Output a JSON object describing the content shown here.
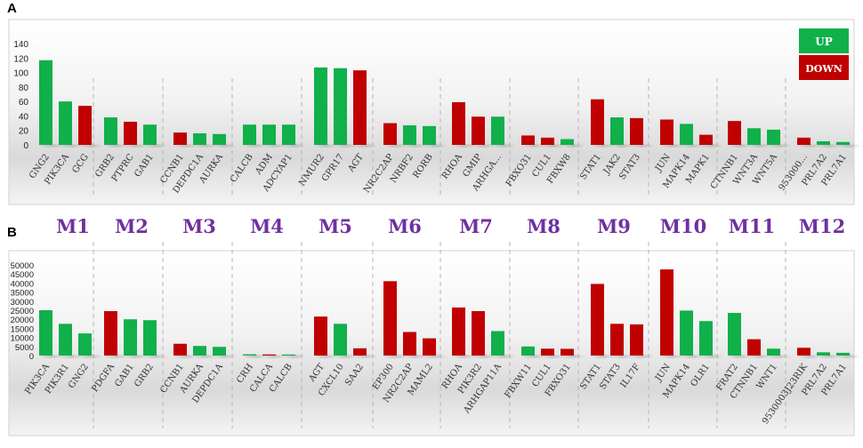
{
  "panels": {
    "a": "A",
    "b": "B"
  },
  "legend": {
    "up": "UP",
    "down": "DOWN",
    "up_color": "#10B04A",
    "down_color": "#C00000"
  },
  "modules": [
    "M1",
    "M2",
    "M3",
    "M4",
    "M5",
    "M6",
    "M7",
    "M8",
    "M9",
    "M10",
    "M11",
    "M12"
  ],
  "module_color": "#7030A0",
  "chart_data": [
    {
      "type": "bar",
      "panel": "A",
      "ylim": [
        0,
        140
      ],
      "yticks": [
        0,
        20,
        40,
        60,
        80,
        100,
        120,
        140
      ],
      "grid": false,
      "legend_position": "top-right",
      "groups": [
        {
          "module": "M1",
          "bars": [
            {
              "label": "GNG2",
              "value": 117,
              "dir": "up"
            },
            {
              "label": "PIK3CA",
              "value": 60,
              "dir": "up"
            },
            {
              "label": "GCG",
              "value": 54,
              "dir": "down"
            }
          ]
        },
        {
          "module": "M2",
          "bars": [
            {
              "label": "GRB2",
              "value": 38,
              "dir": "up"
            },
            {
              "label": "PTPRC",
              "value": 32,
              "dir": "down"
            },
            {
              "label": "GAB1",
              "value": 28,
              "dir": "up"
            }
          ]
        },
        {
          "module": "M3",
          "bars": [
            {
              "label": "CCNB1",
              "value": 17,
              "dir": "down"
            },
            {
              "label": "DEPDC1A",
              "value": 16,
              "dir": "up"
            },
            {
              "label": "AURKA",
              "value": 15,
              "dir": "up"
            }
          ]
        },
        {
          "module": "M4",
          "bars": [
            {
              "label": "CALCB",
              "value": 28,
              "dir": "up"
            },
            {
              "label": "ADM",
              "value": 28,
              "dir": "up"
            },
            {
              "label": "ADCYAP1",
              "value": 28,
              "dir": "up"
            }
          ]
        },
        {
          "module": "M5",
          "bars": [
            {
              "label": "NMUR2",
              "value": 107,
              "dir": "up"
            },
            {
              "label": "GPR17",
              "value": 106,
              "dir": "up"
            },
            {
              "label": "AGT",
              "value": 103,
              "dir": "down"
            }
          ]
        },
        {
          "module": "M6",
          "bars": [
            {
              "label": "NR2C2AP",
              "value": 30,
              "dir": "down"
            },
            {
              "label": "NRBF2",
              "value": 27,
              "dir": "up"
            },
            {
              "label": "RORB",
              "value": 26,
              "dir": "up"
            }
          ]
        },
        {
          "module": "M7",
          "bars": [
            {
              "label": "RHOA",
              "value": 59,
              "dir": "down"
            },
            {
              "label": "GMIP",
              "value": 39,
              "dir": "down"
            },
            {
              "label": "ARHGA...",
              "value": 39,
              "dir": "up"
            }
          ]
        },
        {
          "module": "M8",
          "bars": [
            {
              "label": "FBXO31",
              "value": 13,
              "dir": "down"
            },
            {
              "label": "CUL1",
              "value": 10,
              "dir": "down"
            },
            {
              "label": "FBXW8",
              "value": 8,
              "dir": "up"
            }
          ]
        },
        {
          "module": "M9",
          "bars": [
            {
              "label": "STAT1",
              "value": 63,
              "dir": "down"
            },
            {
              "label": "JAK2",
              "value": 38,
              "dir": "up"
            },
            {
              "label": "STAT3",
              "value": 37,
              "dir": "down"
            }
          ]
        },
        {
          "module": "M10",
          "bars": [
            {
              "label": "JUN",
              "value": 35,
              "dir": "down"
            },
            {
              "label": "MAPK14",
              "value": 29,
              "dir": "up"
            },
            {
              "label": "MAPK1",
              "value": 14,
              "dir": "down"
            }
          ]
        },
        {
          "module": "M11",
          "bars": [
            {
              "label": "CTNNB1",
              "value": 33,
              "dir": "down"
            },
            {
              "label": "WNT3A",
              "value": 23,
              "dir": "up"
            },
            {
              "label": "WNT5A",
              "value": 21,
              "dir": "up"
            }
          ]
        },
        {
          "module": "M12",
          "bars": [
            {
              "label": "953000...",
              "value": 10,
              "dir": "down"
            },
            {
              "label": "PRL7A2",
              "value": 5,
              "dir": "up"
            },
            {
              "label": "PRL7A1",
              "value": 4,
              "dir": "up"
            }
          ]
        }
      ]
    },
    {
      "type": "bar",
      "panel": "B",
      "ylim": [
        0,
        50000
      ],
      "yticks": [
        0,
        5000,
        10000,
        15000,
        20000,
        25000,
        30000,
        35000,
        40000,
        45000,
        50000
      ],
      "grid": false,
      "groups": [
        {
          "module": "M1",
          "bars": [
            {
              "label": "PIK3CA",
              "value": 25000,
              "dir": "up"
            },
            {
              "label": "PIK3R1",
              "value": 17500,
              "dir": "up"
            },
            {
              "label": "GNG2",
              "value": 12200,
              "dir": "up"
            }
          ]
        },
        {
          "module": "M2",
          "bars": [
            {
              "label": "PDGFA",
              "value": 24500,
              "dir": "down"
            },
            {
              "label": "GAB1",
              "value": 20000,
              "dir": "up"
            },
            {
              "label": "GRB2",
              "value": 19500,
              "dir": "up"
            }
          ]
        },
        {
          "module": "M3",
          "bars": [
            {
              "label": "CCNB1",
              "value": 6500,
              "dir": "down"
            },
            {
              "label": "AURKA",
              "value": 5300,
              "dir": "up"
            },
            {
              "label": "DEPDC1A",
              "value": 4800,
              "dir": "up"
            }
          ]
        },
        {
          "module": "M4",
          "bars": [
            {
              "label": "CRH",
              "value": 700,
              "dir": "up"
            },
            {
              "label": "CALCA",
              "value": 600,
              "dir": "down"
            },
            {
              "label": "CALCB",
              "value": 400,
              "dir": "up"
            }
          ]
        },
        {
          "module": "M5",
          "bars": [
            {
              "label": "AGT",
              "value": 21500,
              "dir": "down"
            },
            {
              "label": "CXCL10",
              "value": 17500,
              "dir": "up"
            },
            {
              "label": "SAA2",
              "value": 4000,
              "dir": "down"
            }
          ]
        },
        {
          "module": "M6",
          "bars": [
            {
              "label": "EP300",
              "value": 41000,
              "dir": "down"
            },
            {
              "label": "NR2C2AP",
              "value": 13000,
              "dir": "down"
            },
            {
              "label": "MAML2",
              "value": 9500,
              "dir": "down"
            }
          ]
        },
        {
          "module": "M7",
          "bars": [
            {
              "label": "RHOA",
              "value": 26500,
              "dir": "down"
            },
            {
              "label": "PIK3R2",
              "value": 24500,
              "dir": "down"
            },
            {
              "label": "ARHGAP11A",
              "value": 13500,
              "dir": "up"
            }
          ]
        },
        {
          "module": "M8",
          "bars": [
            {
              "label": "FBXW11",
              "value": 5000,
              "dir": "up"
            },
            {
              "label": "CUL1",
              "value": 3800,
              "dir": "down"
            },
            {
              "label": "FBXO31",
              "value": 3700,
              "dir": "down"
            }
          ]
        },
        {
          "module": "M9",
          "bars": [
            {
              "label": "STAT1",
              "value": 39500,
              "dir": "down"
            },
            {
              "label": "STAT3",
              "value": 17500,
              "dir": "down"
            },
            {
              "label": "IL17F",
              "value": 17200,
              "dir": "down"
            }
          ]
        },
        {
          "module": "M10",
          "bars": [
            {
              "label": "JUN",
              "value": 47500,
              "dir": "down"
            },
            {
              "label": "MAPK14",
              "value": 24800,
              "dir": "up"
            },
            {
              "label": "OLR1",
              "value": 19000,
              "dir": "up"
            }
          ]
        },
        {
          "module": "M11",
          "bars": [
            {
              "label": "FRAT2",
              "value": 23500,
              "dir": "up"
            },
            {
              "label": "CTNNB1",
              "value": 9000,
              "dir": "down"
            },
            {
              "label": "WNT1",
              "value": 3800,
              "dir": "up"
            }
          ]
        },
        {
          "module": "M12",
          "bars": [
            {
              "label": "9530003J23RIK",
              "value": 4300,
              "dir": "down"
            },
            {
              "label": "PRL7A2",
              "value": 1800,
              "dir": "up"
            },
            {
              "label": "PRL7A1",
              "value": 1500,
              "dir": "up"
            }
          ]
        }
      ]
    }
  ]
}
